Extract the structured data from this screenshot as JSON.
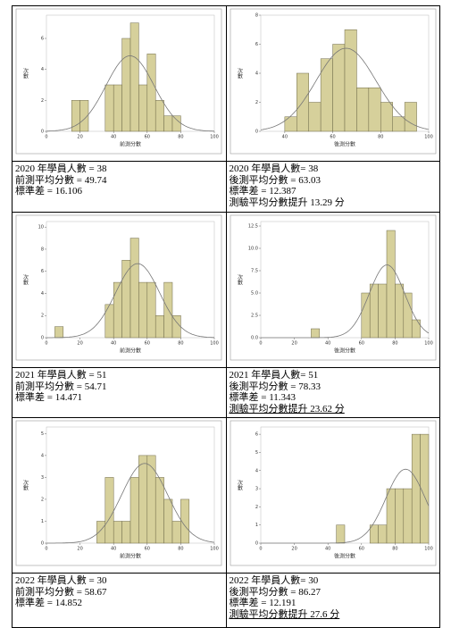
{
  "chart_data": [
    {
      "type": "histogram",
      "x_label": "前測分數",
      "y_label": "次數",
      "color": "#d6d09b",
      "bins": [
        15,
        20,
        25,
        30,
        35,
        40,
        45,
        50,
        55,
        60,
        65,
        70,
        75,
        80
      ],
      "values": [
        2,
        2,
        0,
        0,
        3,
        3,
        6,
        7,
        3,
        5,
        2,
        1,
        1
      ],
      "xlim": [
        0,
        100
      ],
      "xticks": [
        0,
        20,
        40,
        60,
        80,
        100
      ],
      "ylim": [
        0,
        7.5
      ],
      "yticks": [
        0,
        2,
        4,
        6
      ]
    },
    {
      "type": "histogram",
      "x_label": "後測分數",
      "y_label": "次數",
      "color": "#d6d09b",
      "bins": [
        40,
        45,
        50,
        55,
        60,
        65,
        70,
        75,
        80,
        85,
        90,
        95
      ],
      "values": [
        1,
        4,
        2,
        5,
        6,
        7,
        3,
        3,
        2,
        1,
        2
      ],
      "xlim": [
        30,
        100
      ],
      "xticks": [
        40,
        60,
        80,
        100
      ],
      "ylim": [
        0,
        8
      ],
      "yticks": [
        0,
        2,
        4,
        6,
        8
      ]
    },
    {
      "type": "histogram",
      "x_label": "前測分數",
      "y_label": "次數",
      "color": "#d6d09b",
      "bins": [
        5,
        10,
        15,
        20,
        25,
        30,
        35,
        40,
        45,
        50,
        55,
        60,
        65,
        70,
        75,
        80
      ],
      "values": [
        1,
        0,
        0,
        0,
        0,
        0,
        3,
        5,
        7,
        9,
        5,
        5,
        2,
        5,
        2
      ],
      "xlim": [
        0,
        100
      ],
      "xticks": [
        0,
        20,
        40,
        60,
        80,
        100
      ],
      "ylim": [
        0,
        10.5
      ],
      "yticks": [
        0,
        2,
        4,
        6,
        8,
        10
      ]
    },
    {
      "type": "histogram",
      "x_label": "後測分數",
      "y_label": "次數",
      "color": "#d6d09b",
      "bins": [
        30,
        35,
        40,
        45,
        50,
        55,
        60,
        65,
        70,
        75,
        80,
        85,
        90,
        95
      ],
      "values": [
        1,
        0,
        0,
        0,
        0,
        0,
        5,
        6,
        6,
        12,
        6,
        5,
        2
      ],
      "xlim": [
        0,
        100
      ],
      "xticks": [
        0,
        20,
        40,
        60,
        80,
        100
      ],
      "ylim": [
        0,
        13
      ],
      "yticks": [
        {
          "value": 0,
          "label": "0.0"
        },
        {
          "value": 2.5,
          "label": "2.5"
        },
        {
          "value": 5,
          "label": "5.0"
        },
        {
          "value": 7.5,
          "label": "7.5"
        },
        {
          "value": 10,
          "label": "10.0"
        },
        {
          "value": 12.5,
          "label": "12.5"
        }
      ]
    },
    {
      "type": "histogram",
      "x_label": "前測分數",
      "y_label": "次數",
      "color": "#d6d09b",
      "bins": [
        30,
        35,
        40,
        45,
        50,
        55,
        60,
        65,
        70,
        75,
        80,
        85
      ],
      "values": [
        1,
        3,
        1,
        1,
        3,
        4,
        4,
        3,
        2,
        1,
        2
      ],
      "xlim": [
        0,
        100
      ],
      "xticks": [
        0,
        20,
        40,
        60,
        80,
        100
      ],
      "ylim": [
        0,
        5.3
      ],
      "yticks": [
        0,
        1,
        2,
        3,
        4,
        5
      ]
    },
    {
      "type": "histogram",
      "x_label": "後測分數",
      "y_label": "次數",
      "color": "#d6d09b",
      "bins": [
        45,
        50,
        55,
        60,
        65,
        70,
        75,
        80,
        85,
        90,
        95,
        100
      ],
      "values": [
        1,
        0,
        0,
        0,
        1,
        1,
        3,
        3,
        3,
        6,
        6
      ],
      "xlim": [
        0,
        100
      ],
      "xticks": [
        0,
        20,
        40,
        60,
        80,
        100
      ],
      "ylim": [
        0,
        6.4
      ],
      "yticks": [
        0,
        1,
        2,
        3,
        4,
        5,
        6
      ]
    }
  ],
  "table": {
    "rows": [
      [
        [
          "2020 年學員人數 = 38",
          "前測平均分數 = 49.74",
          "標準差 = 16.106"
        ],
        [
          "2020 年學員人數= 38",
          "後測平均分數 = 63.03",
          "標準差 = 12.387",
          "測驗平均分數提升 13.29 分"
        ]
      ],
      [
        [
          "2021 年學員人數 = 51",
          "前測平均分數 = 54.71",
          "標準差 = 14.471"
        ],
        [
          "2021 年學員人數= 51",
          "後測平均分數 = 78.33",
          "標準差 = 11.343",
          "測驗平均分數提升 23.62 分"
        ]
      ],
      [
        [
          "2022 年學員人數 = 30",
          "前測平均分數 = 58.67",
          "標準差 = 14.852"
        ],
        [
          "2022 年學員人數= 30",
          "後測平均分數 = 86.27",
          "標準差 = 12.191",
          "測驗平均分數提升 27.6 分"
        ]
      ]
    ]
  }
}
